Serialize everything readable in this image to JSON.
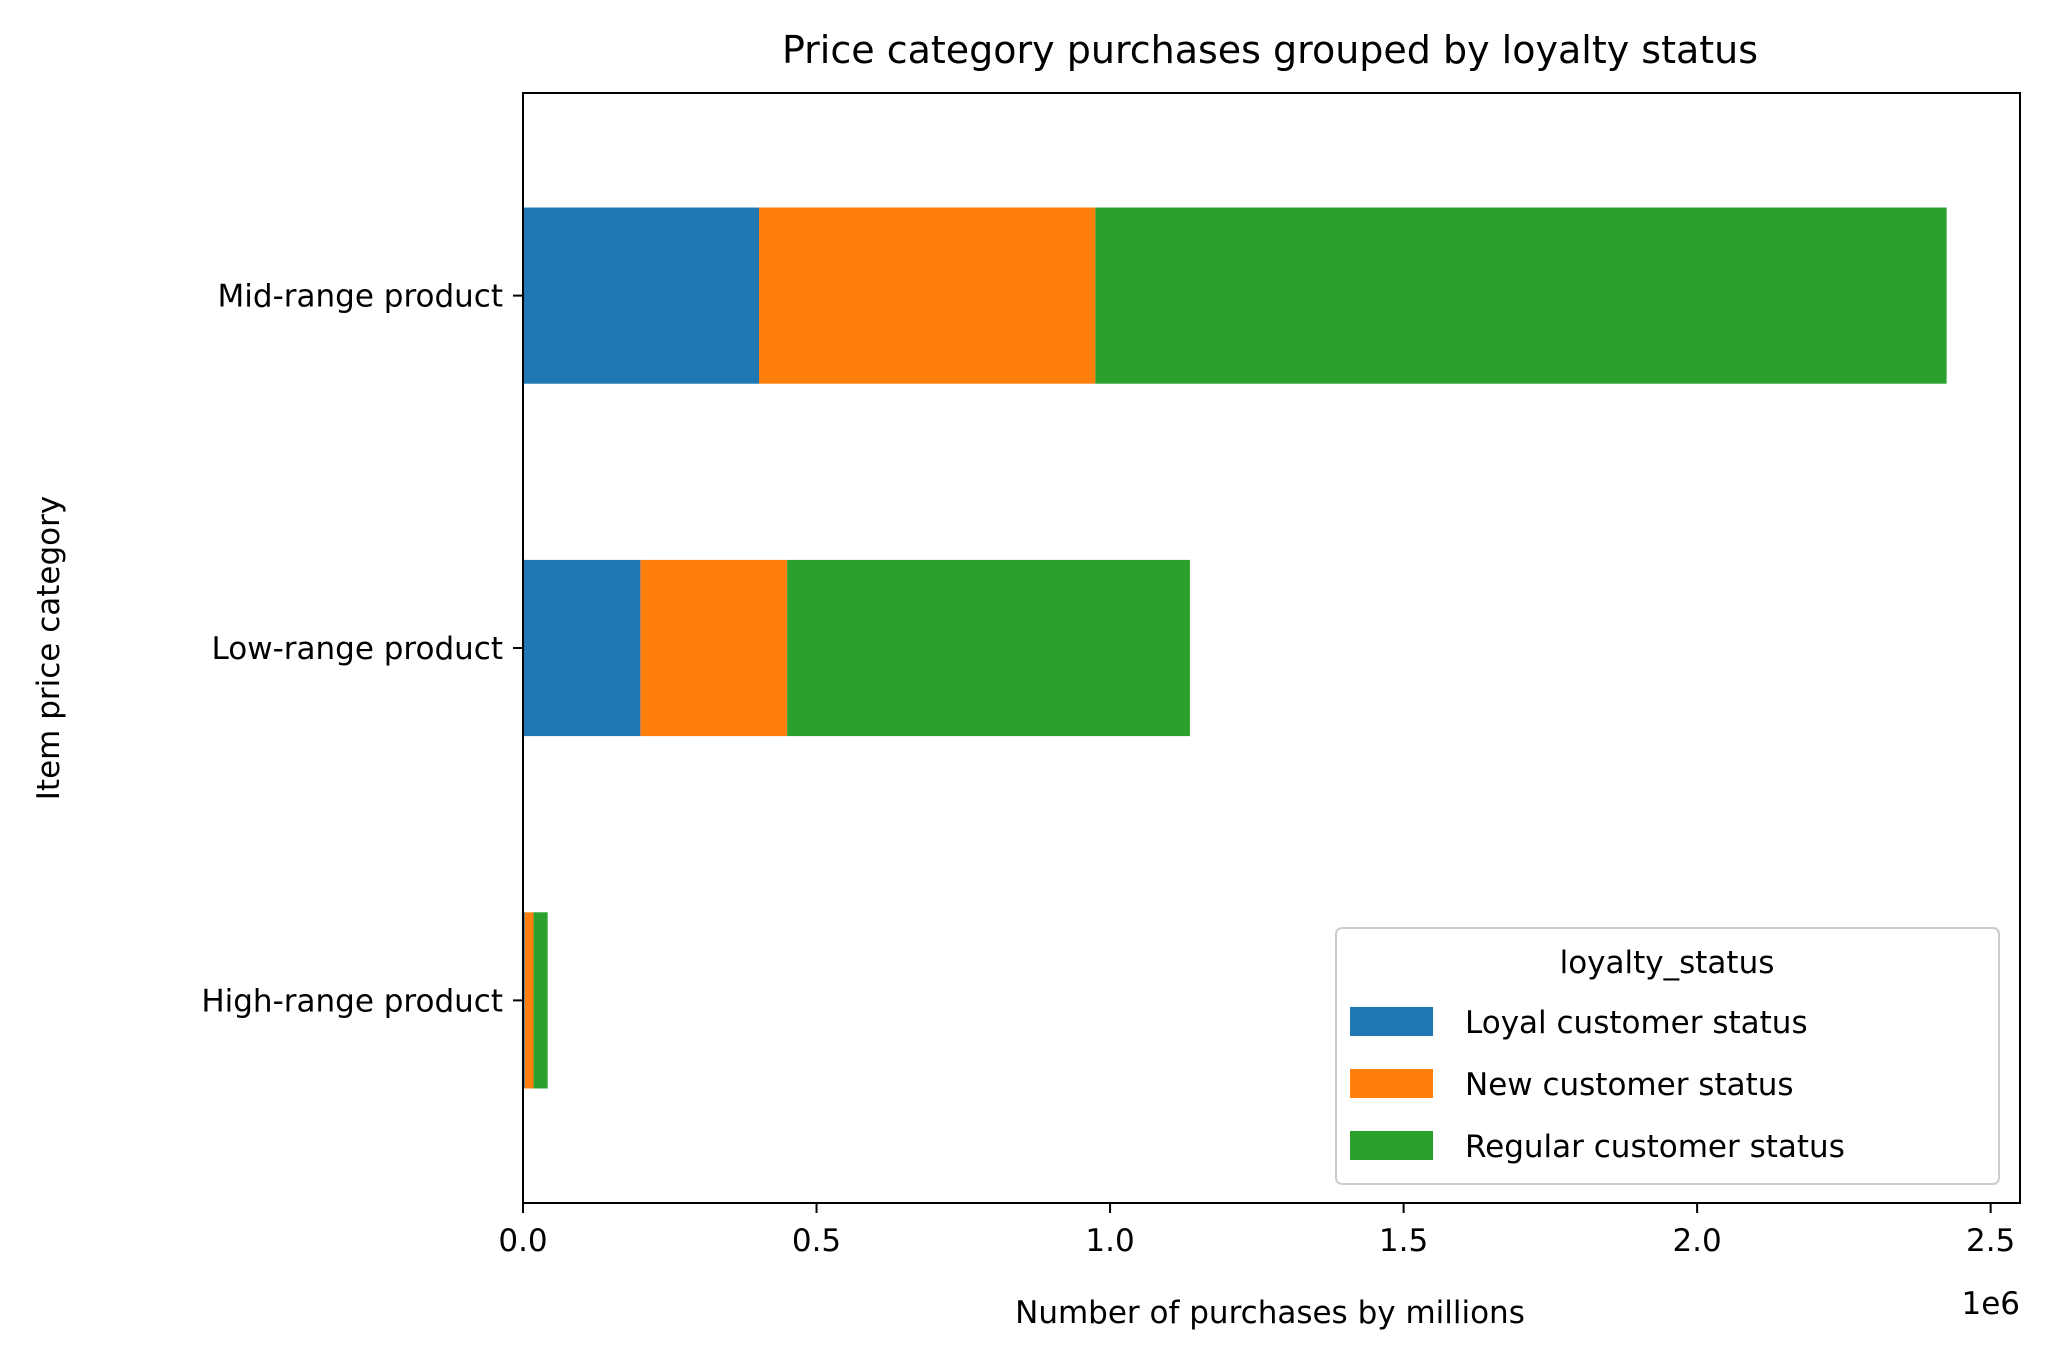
{
  "chart_data": {
    "type": "bar",
    "orientation": "horizontal",
    "stacked": true,
    "title": "Price category purchases grouped by loyalty status",
    "xlabel": "Number of purchases by millions",
    "ylabel": "Item price category",
    "x_offset_label": "1e6",
    "xlim": [
      0,
      2550000
    ],
    "xticks": [
      0,
      500000,
      1000000,
      1500000,
      2000000,
      2500000
    ],
    "xtick_labels": [
      "0.0",
      "0.5",
      "1.0",
      "1.5",
      "2.0",
      "2.5"
    ],
    "categories": [
      "High-range product",
      "Low-range product",
      "Mid-range product"
    ],
    "series": [
      {
        "name": "Loyal customer status",
        "color": "#1f77b4",
        "values": [
          3000,
          200000,
          402000
        ]
      },
      {
        "name": "New customer status",
        "color": "#ff7f0e",
        "values": [
          15000,
          250000,
          573000
        ]
      },
      {
        "name": "Regular customer status",
        "color": "#2ca02c",
        "values": [
          24000,
          686000,
          1450000
        ]
      }
    ],
    "grid": false,
    "legend": {
      "title": "loyalty_status",
      "placement": "lower right"
    }
  }
}
